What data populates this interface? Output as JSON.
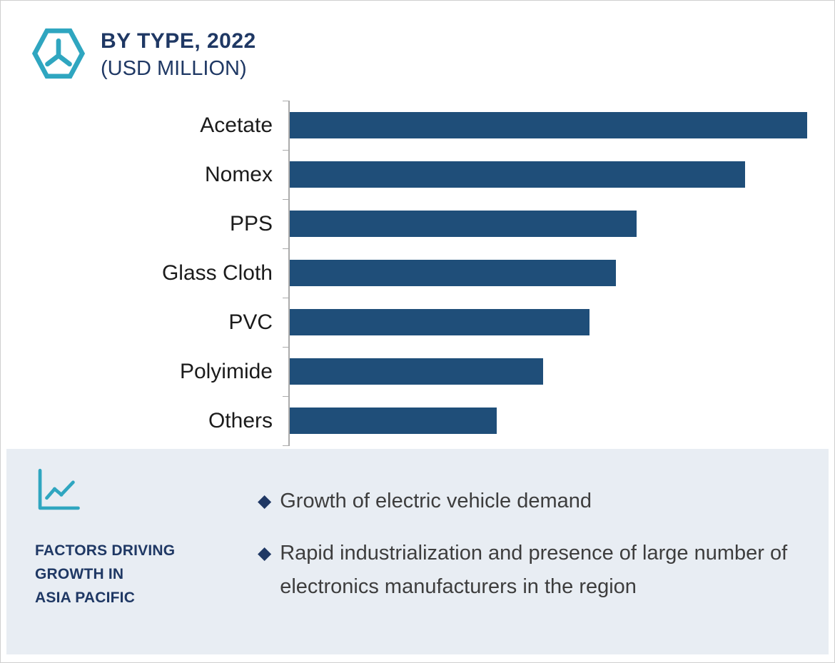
{
  "header": {
    "title": "BY TYPE, 2022",
    "subtitle": "(USD MILLION)"
  },
  "chart_data": {
    "type": "bar",
    "orientation": "horizontal",
    "title": "BY TYPE, 2022 (USD MILLION)",
    "categories": [
      "Acetate",
      "Nomex",
      "PPS",
      "Glass Cloth",
      "PVC",
      "Polyimide",
      "Others"
    ],
    "values": [
      100,
      88,
      67,
      63,
      58,
      49,
      40
    ],
    "xlabel": "",
    "ylabel": "",
    "xlim": [
      0,
      100
    ],
    "grid": false,
    "legend": false,
    "value_axis_labeled": false
  },
  "panel": {
    "title_lines": [
      "FACTORS DRIVING",
      "GROWTH IN",
      "ASIA PACIFIC"
    ],
    "bullet_glyph": "◆",
    "bullets": [
      "Growth of electric vehicle demand",
      "Rapid industrialization and presence of large number of electronics manufacturers in the region"
    ]
  },
  "colors": {
    "teal": "#2FA6C0",
    "navy": "#1F3864",
    "bar": "#1F4E79",
    "panel_bg": "#E8EDF3"
  }
}
